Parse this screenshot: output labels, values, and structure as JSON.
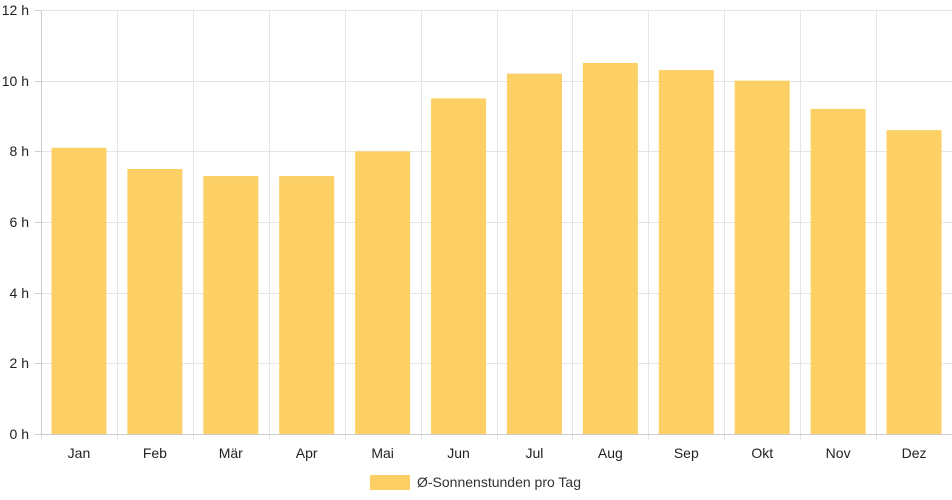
{
  "chart_data": {
    "type": "bar",
    "categories": [
      "Jan",
      "Feb",
      "Mär",
      "Apr",
      "Mai",
      "Jun",
      "Jul",
      "Aug",
      "Sep",
      "Okt",
      "Nov",
      "Dez"
    ],
    "series": [
      {
        "name": "Ø-Sonnenstunden pro Tag",
        "color": "#fdd066",
        "values": [
          8.1,
          7.5,
          7.3,
          7.3,
          8.0,
          9.5,
          10.2,
          10.5,
          10.3,
          10.0,
          9.2,
          8.6
        ]
      }
    ],
    "ylim": [
      0,
      12
    ],
    "y_ticks": [
      0,
      2,
      4,
      6,
      8,
      10,
      12
    ],
    "y_tick_labels": [
      "0 h",
      "2 h",
      "4 h",
      "6 h",
      "8 h",
      "10 h",
      "12 h"
    ],
    "grid": true,
    "legend_position": "bottom-center",
    "grid_color": "#e5e5e5",
    "axis_color": "#cccccc"
  }
}
